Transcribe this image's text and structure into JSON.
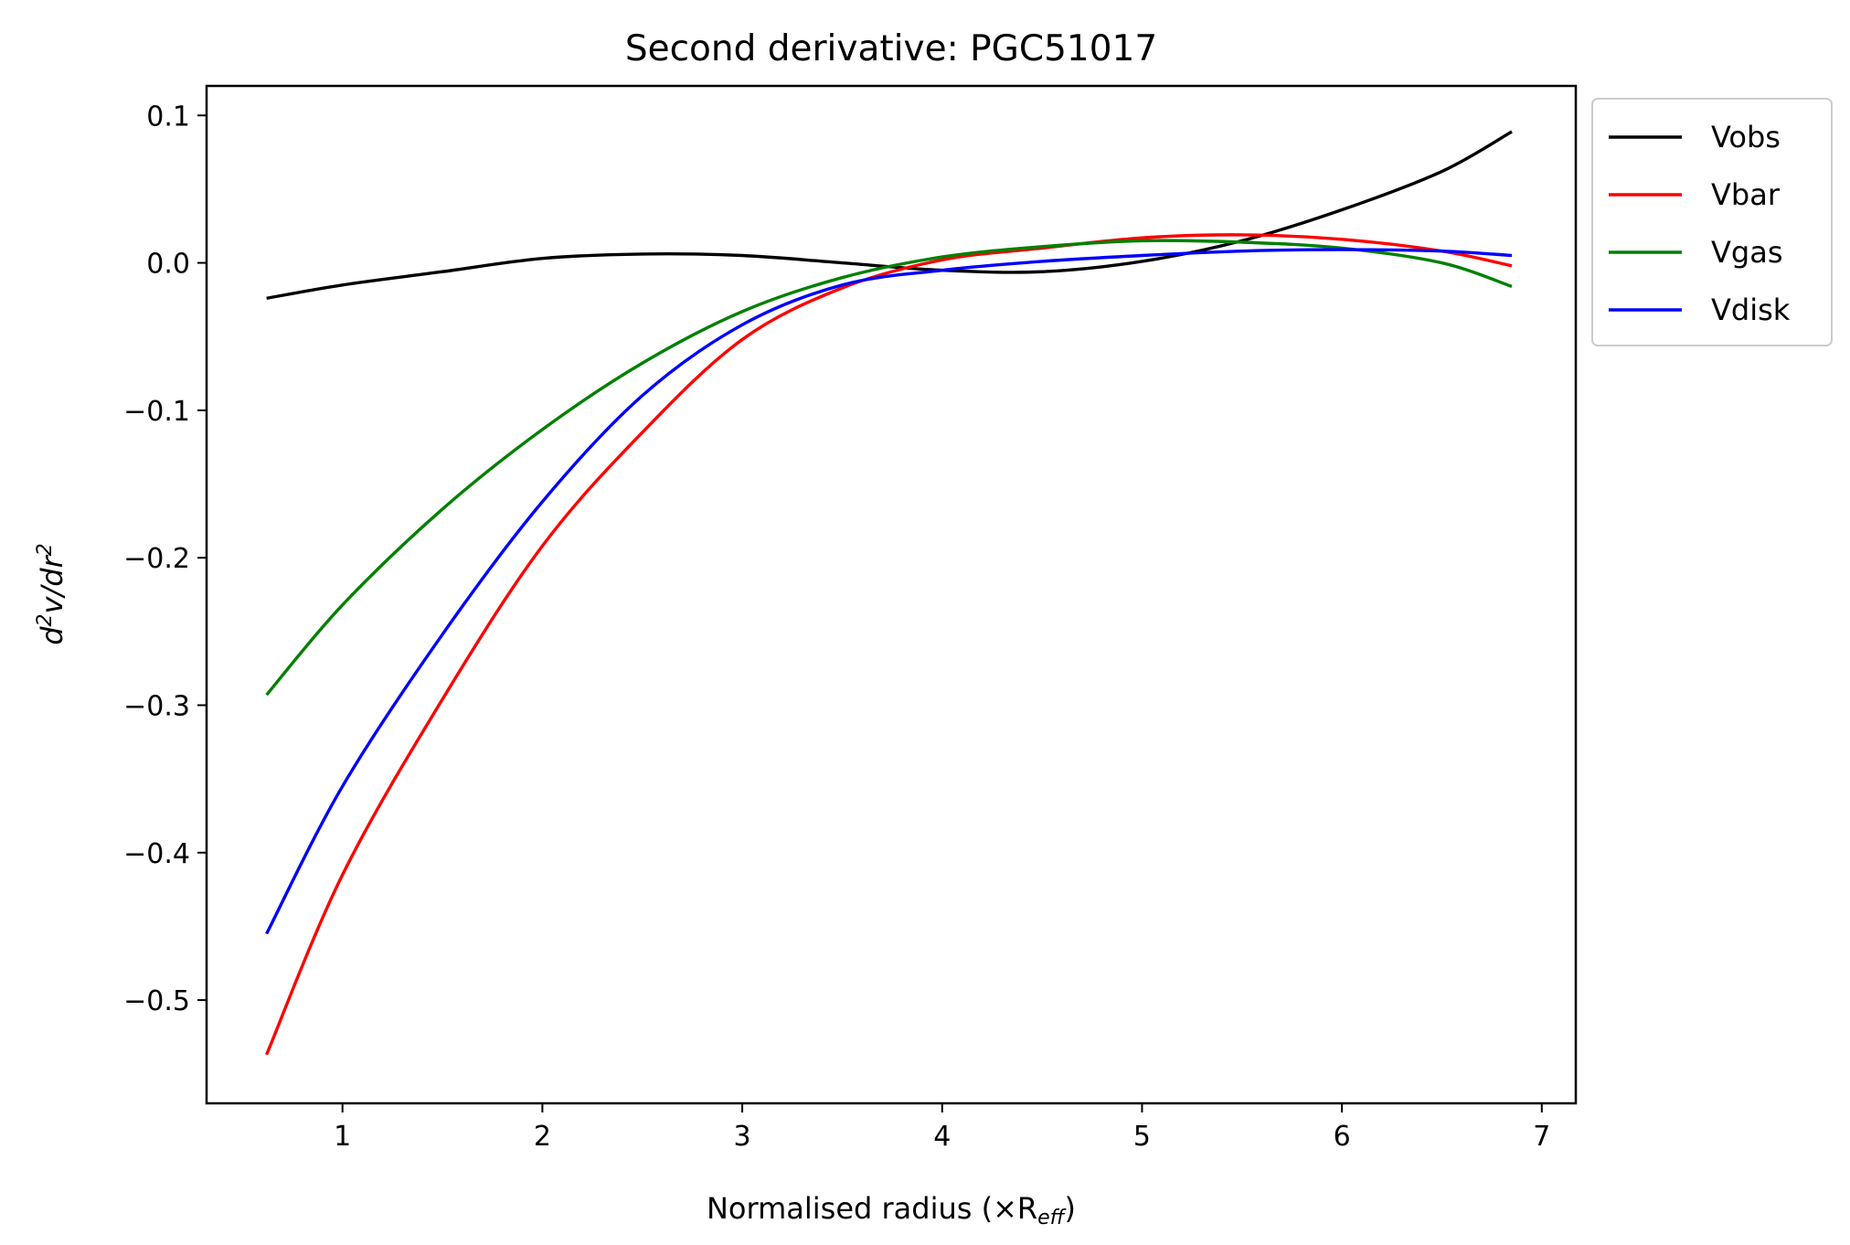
{
  "chart_data": {
    "type": "line",
    "title": "Second derivative: PGC51017",
    "xlabel": "Normalised radius (×R",
    "xlabel_sub": "eff",
    "xlabel_close": ")",
    "ylabel_d": "d",
    "ylabel_exp1": "2",
    "ylabel_mid": "v/dr",
    "ylabel_exp2": "2",
    "xlim": [
      0.32,
      7.17
    ],
    "ylim": [
      -0.57,
      0.12
    ],
    "xticks": [
      1,
      2,
      3,
      4,
      5,
      6,
      7
    ],
    "xtick_labels": [
      "1",
      "2",
      "3",
      "4",
      "5",
      "6",
      "7"
    ],
    "yticks": [
      0.1,
      0.0,
      -0.1,
      -0.2,
      -0.3,
      -0.4,
      -0.5
    ],
    "ytick_labels": [
      "0.1",
      "0.0",
      "−0.1",
      "−0.2",
      "−0.3",
      "−0.4",
      "−0.5"
    ],
    "legend_position": "outside-top-right",
    "grid": false,
    "x": [
      0.62,
      1.0,
      1.5,
      2.0,
      2.5,
      3.0,
      3.5,
      4.0,
      4.5,
      5.0,
      5.5,
      6.0,
      6.5,
      6.85
    ],
    "series": [
      {
        "name": "Vobs",
        "color": "#000000",
        "values": [
          -0.024,
          -0.015,
          -0.006,
          0.003,
          0.006,
          0.005,
          0.0,
          -0.005,
          -0.006,
          0.001,
          0.015,
          0.036,
          0.062,
          0.089
        ]
      },
      {
        "name": "Vbar",
        "color": "#ff0000",
        "values": [
          -0.537,
          -0.415,
          -0.296,
          -0.192,
          -0.115,
          -0.052,
          -0.017,
          0.002,
          0.01,
          0.017,
          0.019,
          0.016,
          0.008,
          -0.002
        ]
      },
      {
        "name": "Vgas",
        "color": "#008000",
        "values": [
          -0.293,
          -0.232,
          -0.167,
          -0.113,
          -0.068,
          -0.033,
          -0.01,
          0.004,
          0.011,
          0.015,
          0.014,
          0.01,
          0.0,
          -0.016
        ]
      },
      {
        "name": "Vdisk",
        "color": "#0000ff",
        "values": [
          -0.455,
          -0.355,
          -0.252,
          -0.162,
          -0.09,
          -0.042,
          -0.015,
          -0.005,
          0.001,
          0.005,
          0.008,
          0.009,
          0.008,
          0.005
        ]
      }
    ]
  }
}
